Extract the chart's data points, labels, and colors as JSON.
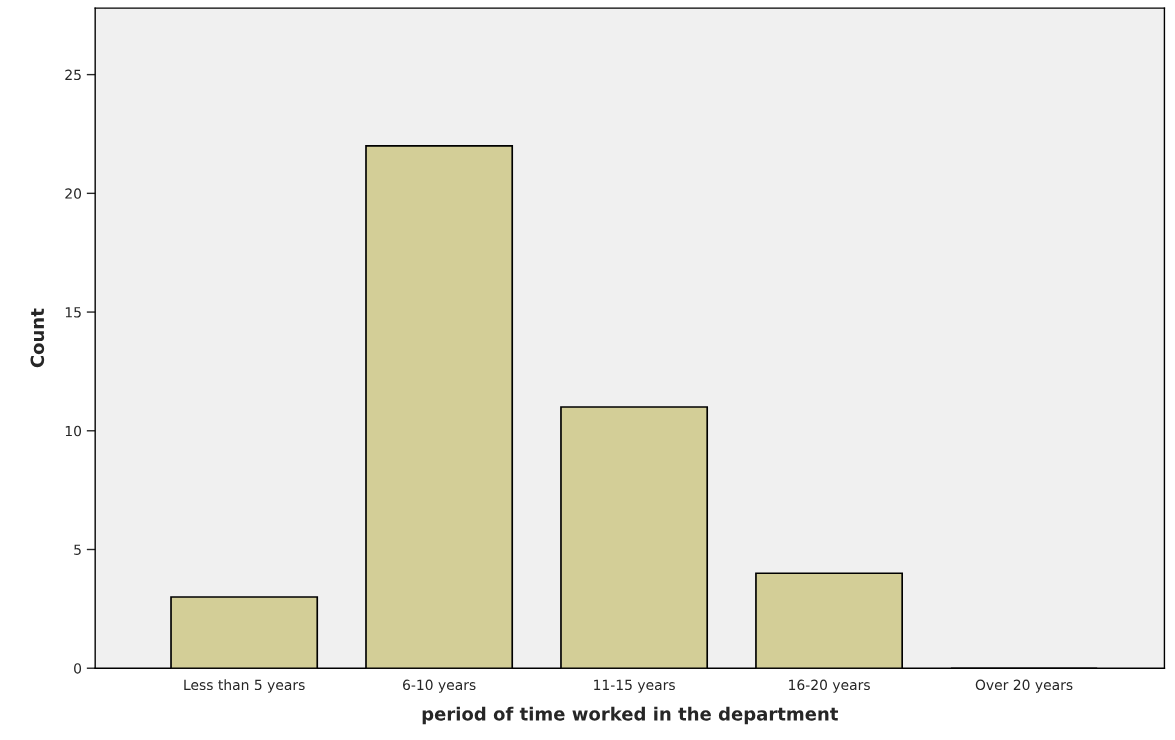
{
  "chart_data": {
    "type": "bar",
    "xlabel": "period of time worked in the department",
    "ylabel": "Count",
    "categories": [
      "Less than 5 years",
      "6-10 years",
      "11-15 years",
      "16-20 years",
      "Over 20 years"
    ],
    "values": [
      3,
      22,
      11,
      4,
      0
    ],
    "color": "#d3ce97",
    "ylim": [
      0,
      27.8
    ],
    "yticks": [
      0,
      5,
      10,
      15,
      20,
      25
    ],
    "grid": false,
    "legend": false
  }
}
